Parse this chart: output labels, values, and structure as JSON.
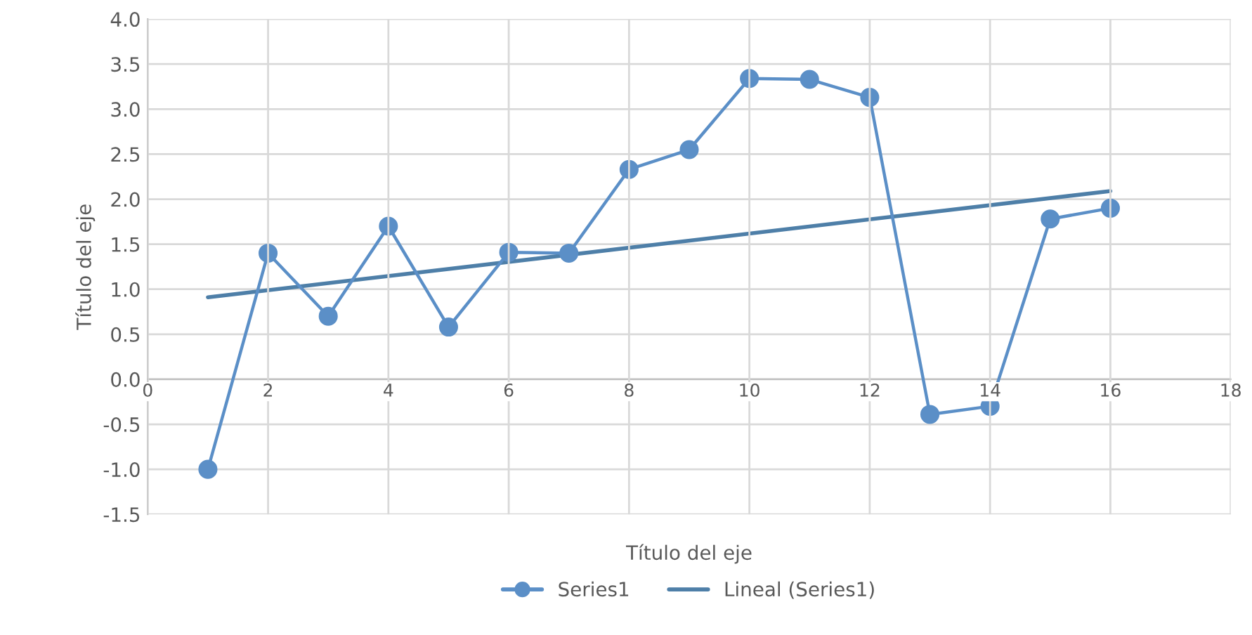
{
  "chart_data": {
    "type": "line",
    "xlabel": "Título del eje",
    "ylabel": "Título del eje",
    "series": [
      {
        "name": "Series1",
        "color": "#5b8fc7",
        "marker": "circle",
        "x": [
          1,
          2,
          3,
          4,
          5,
          6,
          7,
          8,
          9,
          10,
          11,
          12,
          13,
          14,
          15,
          16
        ],
        "values": [
          -1.0,
          1.4,
          0.7,
          1.7,
          0.58,
          1.41,
          1.4,
          2.33,
          2.55,
          3.34,
          3.33,
          3.13,
          -0.39,
          -0.3,
          1.78,
          1.9
        ]
      },
      {
        "name": "Lineal (Series1)",
        "color": "#4e7fa8",
        "marker": "none",
        "x": [
          1,
          16
        ],
        "values": [
          0.91,
          2.09
        ]
      }
    ],
    "xlim": [
      0,
      18
    ],
    "xticks": [
      0,
      2,
      4,
      6,
      8,
      10,
      12,
      14,
      16,
      18
    ],
    "ylim": [
      -1.5,
      4.0
    ],
    "yticks": [
      {
        "value": -1.5,
        "label": "-1.5"
      },
      {
        "value": -1,
        "label": "-1.0"
      },
      {
        "value": -0.5,
        "label": "-0.5"
      },
      {
        "value": 0,
        "label": "0.0"
      },
      {
        "value": 0.5,
        "label": "0.5"
      },
      {
        "value": 1,
        "label": "1.0"
      },
      {
        "value": 1.5,
        "label": "1.5"
      },
      {
        "value": 2,
        "label": "2.0"
      },
      {
        "value": 2.5,
        "label": "2.5"
      },
      {
        "value": 3,
        "label": "3.0"
      },
      {
        "value": 3.5,
        "label": "3.5"
      },
      {
        "value": 4,
        "label": "4.0"
      }
    ],
    "grid": true,
    "legend": "bottom"
  }
}
